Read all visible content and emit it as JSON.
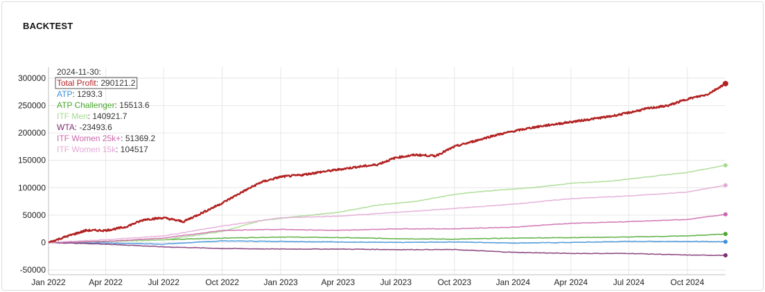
{
  "panel": {
    "title": "BACKTEST"
  },
  "chart_data": {
    "type": "line",
    "title": "",
    "xlabel": "",
    "ylabel": "",
    "x_range": [
      "2022-01-01",
      "2024-11-30"
    ],
    "ylim": [
      -50000,
      300000
    ],
    "y_ticks": [
      -50000,
      0,
      50000,
      100000,
      150000,
      200000,
      250000,
      300000
    ],
    "y_tick_labels": [
      "-50000",
      "0",
      "50000",
      "100000",
      "150000",
      "200000",
      "250000",
      "300000"
    ],
    "x_ticks": [
      "2022-01-01",
      "2022-04-01",
      "2022-07-01",
      "2022-10-01",
      "2023-01-01",
      "2023-04-01",
      "2023-07-01",
      "2023-10-01",
      "2024-01-01",
      "2024-04-01",
      "2024-07-01",
      "2024-10-01"
    ],
    "x_tick_labels": [
      "Jan 2022",
      "Apr 2022",
      "Jul 2022",
      "Oct 2022",
      "Jan 2023",
      "Apr 2023",
      "Jul 2023",
      "Oct 2023",
      "Jan 2024",
      "Apr 2024",
      "Jul 2024",
      "Oct 2024"
    ],
    "grid": true,
    "legend": {
      "placement": "top-left",
      "date_label": "2024-11-30:",
      "highlighted": "Total Profit"
    },
    "series": [
      {
        "name": "Total Profit",
        "color": "#b22222",
        "value_label": "290121.2",
        "points": [
          [
            "2022-01-01",
            0
          ],
          [
            "2022-02-01",
            12000
          ],
          [
            "2022-03-01",
            22000
          ],
          [
            "2022-04-01",
            22000
          ],
          [
            "2022-05-01",
            28000
          ],
          [
            "2022-06-01",
            42000
          ],
          [
            "2022-07-01",
            45000
          ],
          [
            "2022-08-01",
            38000
          ],
          [
            "2022-09-01",
            55000
          ],
          [
            "2022-10-01",
            72000
          ],
          [
            "2022-11-01",
            92000
          ],
          [
            "2022-12-01",
            110000
          ],
          [
            "2023-01-01",
            120000
          ],
          [
            "2023-02-01",
            123000
          ],
          [
            "2023-03-01",
            128000
          ],
          [
            "2023-04-01",
            133000
          ],
          [
            "2023-05-01",
            138000
          ],
          [
            "2023-06-01",
            142000
          ],
          [
            "2023-07-01",
            155000
          ],
          [
            "2023-08-01",
            160000
          ],
          [
            "2023-09-01",
            158000
          ],
          [
            "2023-10-01",
            175000
          ],
          [
            "2023-11-01",
            185000
          ],
          [
            "2023-12-01",
            195000
          ],
          [
            "2024-01-01",
            203000
          ],
          [
            "2024-02-01",
            210000
          ],
          [
            "2024-03-01",
            215000
          ],
          [
            "2024-04-01",
            220000
          ],
          [
            "2024-05-01",
            225000
          ],
          [
            "2024-06-01",
            230000
          ],
          [
            "2024-07-01",
            237000
          ],
          [
            "2024-08-01",
            245000
          ],
          [
            "2024-09-01",
            250000
          ],
          [
            "2024-10-01",
            262000
          ],
          [
            "2024-11-01",
            270000
          ],
          [
            "2024-11-30",
            290121.2
          ]
        ]
      },
      {
        "name": "ATP",
        "color": "#3a8fd9",
        "value_label": "1293.3",
        "points": [
          [
            "2022-01-01",
            0
          ],
          [
            "2022-04-01",
            -1000
          ],
          [
            "2022-07-01",
            -3000
          ],
          [
            "2022-10-01",
            3000
          ],
          [
            "2023-01-01",
            2000
          ],
          [
            "2023-04-01",
            1000
          ],
          [
            "2023-07-01",
            0
          ],
          [
            "2023-10-01",
            1000
          ],
          [
            "2024-01-01",
            -1000
          ],
          [
            "2024-04-01",
            0
          ],
          [
            "2024-07-01",
            2000
          ],
          [
            "2024-10-01",
            2000
          ],
          [
            "2024-11-30",
            1293.3
          ]
        ]
      },
      {
        "name": "ATP Challenger",
        "color": "#4aa72e",
        "value_label": "15513.6",
        "points": [
          [
            "2022-01-01",
            0
          ],
          [
            "2022-04-01",
            2000
          ],
          [
            "2022-07-01",
            5000
          ],
          [
            "2022-10-01",
            8000
          ],
          [
            "2023-01-01",
            10000
          ],
          [
            "2023-04-01",
            9000
          ],
          [
            "2023-07-01",
            7000
          ],
          [
            "2023-10-01",
            6000
          ],
          [
            "2024-01-01",
            8000
          ],
          [
            "2024-04-01",
            9000
          ],
          [
            "2024-07-01",
            10000
          ],
          [
            "2024-10-01",
            12000
          ],
          [
            "2024-11-30",
            15513.6
          ]
        ]
      },
      {
        "name": "ITF Men",
        "color": "#a6db8e",
        "value_label": "140921.7",
        "points": [
          [
            "2022-01-01",
            0
          ],
          [
            "2022-04-01",
            2000
          ],
          [
            "2022-07-01",
            5000
          ],
          [
            "2022-10-01",
            20000
          ],
          [
            "2022-12-01",
            40000
          ],
          [
            "2023-02-01",
            48000
          ],
          [
            "2023-04-01",
            55000
          ],
          [
            "2023-06-01",
            68000
          ],
          [
            "2023-08-01",
            75000
          ],
          [
            "2023-10-01",
            88000
          ],
          [
            "2023-12-01",
            95000
          ],
          [
            "2024-02-01",
            100000
          ],
          [
            "2024-04-01",
            108000
          ],
          [
            "2024-06-01",
            112000
          ],
          [
            "2024-08-01",
            120000
          ],
          [
            "2024-10-01",
            128000
          ],
          [
            "2024-11-30",
            140921.7
          ]
        ]
      },
      {
        "name": "WTA",
        "color": "#7b2c6e",
        "value_label": "-23493.6",
        "points": [
          [
            "2022-01-01",
            0
          ],
          [
            "2022-04-01",
            -3000
          ],
          [
            "2022-07-01",
            -8000
          ],
          [
            "2022-10-01",
            -11000
          ],
          [
            "2023-01-01",
            -12000
          ],
          [
            "2023-04-01",
            -12000
          ],
          [
            "2023-07-01",
            -13000
          ],
          [
            "2023-10-01",
            -13000
          ],
          [
            "2024-01-01",
            -18000
          ],
          [
            "2024-04-01",
            -20000
          ],
          [
            "2024-07-01",
            -20000
          ],
          [
            "2024-10-01",
            -23000
          ],
          [
            "2024-11-30",
            -23493.6
          ]
        ]
      },
      {
        "name": "ITF Women 25k+",
        "color": "#cc66aa",
        "value_label": "51369.2",
        "points": [
          [
            "2022-01-01",
            0
          ],
          [
            "2022-04-01",
            2000
          ],
          [
            "2022-07-01",
            8000
          ],
          [
            "2022-10-01",
            22000
          ],
          [
            "2023-01-01",
            24000
          ],
          [
            "2023-04-01",
            22000
          ],
          [
            "2023-07-01",
            25000
          ],
          [
            "2023-10-01",
            25000
          ],
          [
            "2024-01-01",
            28000
          ],
          [
            "2024-04-01",
            35000
          ],
          [
            "2024-07-01",
            38000
          ],
          [
            "2024-10-01",
            42000
          ],
          [
            "2024-11-30",
            51369.2
          ]
        ]
      },
      {
        "name": "ITF Women 15k",
        "color": "#e3a8d6",
        "value_label": "104517",
        "points": [
          [
            "2022-01-01",
            0
          ],
          [
            "2022-04-01",
            5000
          ],
          [
            "2022-07-01",
            12000
          ],
          [
            "2022-10-01",
            30000
          ],
          [
            "2023-01-01",
            45000
          ],
          [
            "2023-04-01",
            48000
          ],
          [
            "2023-07-01",
            55000
          ],
          [
            "2023-10-01",
            62000
          ],
          [
            "2024-01-01",
            70000
          ],
          [
            "2024-04-01",
            80000
          ],
          [
            "2024-07-01",
            85000
          ],
          [
            "2024-10-01",
            92000
          ],
          [
            "2024-11-30",
            104517
          ]
        ]
      }
    ]
  }
}
